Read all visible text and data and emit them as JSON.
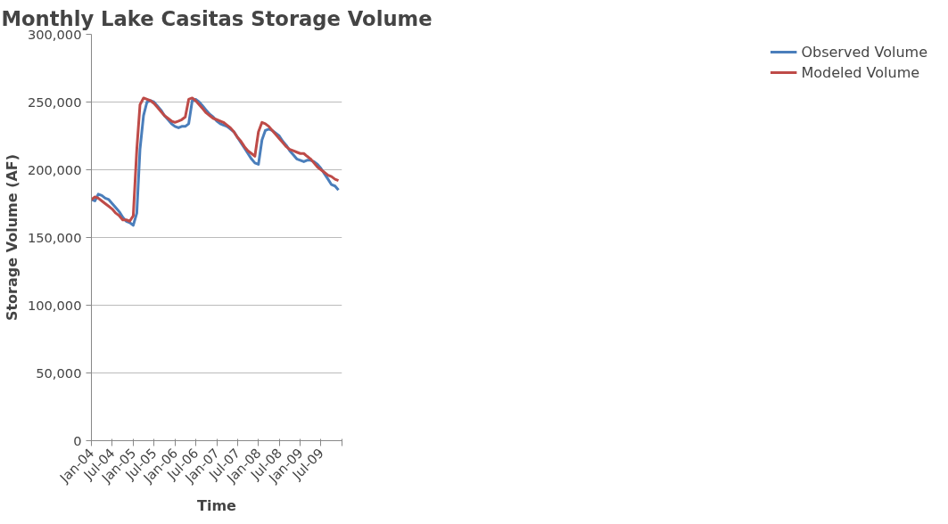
{
  "chart_data": {
    "type": "line",
    "title": "Monthly Lake Casitas Storage Volume",
    "xlabel": "Time",
    "ylabel": "Storage Volume (AF)",
    "x": [
      "2004-01",
      "2004-02",
      "2004-03",
      "2004-04",
      "2004-05",
      "2004-06",
      "2004-07",
      "2004-08",
      "2004-09",
      "2004-10",
      "2004-11",
      "2004-12",
      "2005-01",
      "2005-02",
      "2005-03",
      "2005-04",
      "2005-05",
      "2005-06",
      "2005-07",
      "2005-08",
      "2005-09",
      "2005-10",
      "2005-11",
      "2005-12",
      "2006-01",
      "2006-02",
      "2006-03",
      "2006-04",
      "2006-05",
      "2006-06",
      "2006-07",
      "2006-08",
      "2006-09",
      "2006-10",
      "2006-11",
      "2006-12",
      "2007-01",
      "2007-02",
      "2007-03",
      "2007-04",
      "2007-05",
      "2007-06",
      "2007-07",
      "2007-08",
      "2007-09",
      "2007-10",
      "2007-11",
      "2007-12",
      "2008-01",
      "2008-02",
      "2008-03",
      "2008-04",
      "2008-05",
      "2008-06",
      "2008-07",
      "2008-08",
      "2008-09",
      "2008-10",
      "2008-11",
      "2008-12",
      "2009-01",
      "2009-02",
      "2009-03",
      "2009-04",
      "2009-05",
      "2009-06",
      "2009-07",
      "2009-08",
      "2009-09",
      "2009-10",
      "2009-11",
      "2009-12"
    ],
    "series": [
      {
        "name": "Observed Volume",
        "color": "#4a7ebb",
        "values": [
          178000,
          177000,
          182000,
          181000,
          179000,
          178000,
          175000,
          172000,
          169000,
          165000,
          162000,
          161000,
          159000,
          168000,
          215000,
          240000,
          250000,
          251000,
          250000,
          247000,
          244000,
          240000,
          237000,
          234000,
          232000,
          231000,
          232000,
          232000,
          234000,
          251000,
          252000,
          250000,
          247000,
          244000,
          241000,
          239000,
          236000,
          234000,
          233000,
          232000,
          230000,
          228000,
          224000,
          220000,
          216000,
          212000,
          208000,
          205000,
          204000,
          222000,
          229000,
          230000,
          229000,
          227000,
          225000,
          221000,
          218000,
          214000,
          211000,
          208000,
          207000,
          206000,
          207000,
          207000,
          206000,
          204000,
          201000,
          197000,
          193000,
          189000,
          188000,
          185000
        ]
      },
      {
        "name": "Modeled Volume",
        "color": "#be4b48",
        "values": [
          178000,
          180000,
          179000,
          177000,
          175000,
          173000,
          171000,
          168000,
          166000,
          163000,
          163000,
          162000,
          166000,
          215000,
          248000,
          253000,
          252000,
          251000,
          249000,
          246000,
          243000,
          240000,
          238000,
          236000,
          235000,
          236000,
          237000,
          239000,
          252000,
          253000,
          251000,
          248000,
          245000,
          242000,
          240000,
          238000,
          237000,
          236000,
          235000,
          233000,
          231000,
          228000,
          224000,
          221000,
          217000,
          214000,
          212000,
          210000,
          228000,
          235000,
          234000,
          232000,
          229000,
          226000,
          223000,
          220000,
          217000,
          215000,
          214000,
          213000,
          212000,
          212000,
          210000,
          208000,
          205000,
          202000,
          200000,
          198000,
          196000,
          195000,
          193000,
          192000
        ]
      }
    ],
    "xlim": [
      "2004-01",
      "2010-01"
    ],
    "xticks": [
      {
        "value": "2004-01",
        "label": "Jan-04"
      },
      {
        "value": "2004-07",
        "label": "Jul-04"
      },
      {
        "value": "2005-01",
        "label": "Jan-05"
      },
      {
        "value": "2005-07",
        "label": "Jul-05"
      },
      {
        "value": "2006-01",
        "label": "Jan-06"
      },
      {
        "value": "2006-07",
        "label": "Jul-06"
      },
      {
        "value": "2007-01",
        "label": "Jan-07"
      },
      {
        "value": "2007-07",
        "label": "Jul-07"
      },
      {
        "value": "2008-01",
        "label": "Jan-08"
      },
      {
        "value": "2008-07",
        "label": "Jul-08"
      },
      {
        "value": "2009-01",
        "label": "Jan-09"
      },
      {
        "value": "2009-07",
        "label": "Jul-09"
      },
      {
        "value": "2010-01",
        "label": null
      }
    ],
    "ylim": [
      0,
      300000
    ],
    "yticks": [
      {
        "value": 0,
        "label": "0"
      },
      {
        "value": 50000,
        "label": "50,000"
      },
      {
        "value": 100000,
        "label": "100,000"
      },
      {
        "value": 150000,
        "label": "150,000"
      },
      {
        "value": 200000,
        "label": "200,000"
      },
      {
        "value": 250000,
        "label": "250,000"
      },
      {
        "value": 300000,
        "label": "300,000"
      }
    ],
    "grid": "y",
    "legend": "right",
    "marker": "none",
    "line_style": "solid"
  }
}
